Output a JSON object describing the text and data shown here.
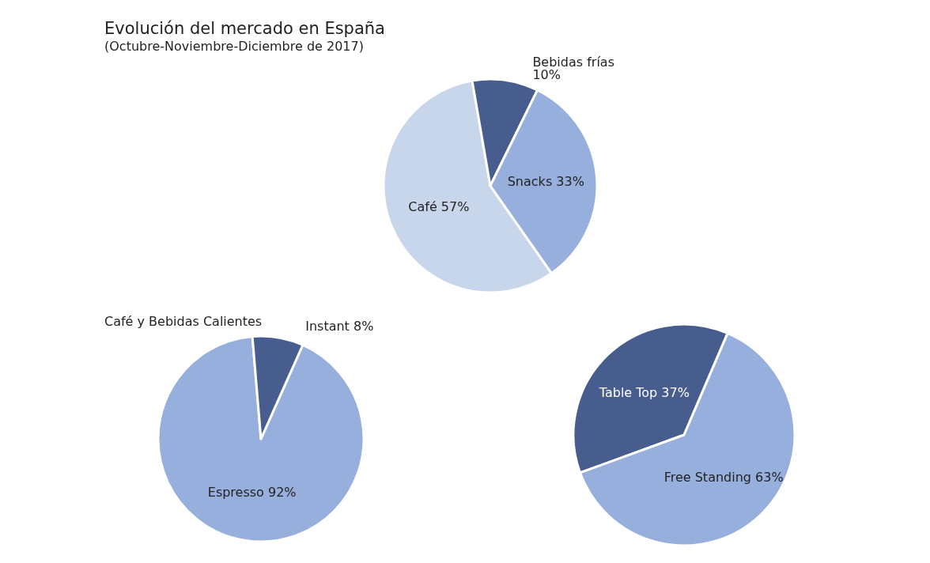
{
  "chart_data": [
    {
      "type": "pie",
      "title": "Evolución del mercado en España",
      "subtitle": "(Octubre-Noviembre-Diciembre de 2017)",
      "categories": [
        "Café",
        "Bebidas frías",
        "Snacks"
      ],
      "values": [
        57,
        10,
        33
      ],
      "colors": [
        "#c8d6ec",
        "#475d8e",
        "#97afdc"
      ],
      "value_labels": [
        "57%",
        "10%",
        "33%"
      ],
      "legend": false
    },
    {
      "type": "pie",
      "title": "Café y Bebidas Calientes",
      "categories": [
        "Espresso",
        "Instant"
      ],
      "values": [
        92,
        8
      ],
      "colors": [
        "#97afdc",
        "#475d8e"
      ],
      "value_labels": [
        "92%",
        "8%"
      ],
      "legend": false
    },
    {
      "type": "pie",
      "categories": [
        "Table Top",
        "Free Standing"
      ],
      "values": [
        37,
        63
      ],
      "colors": [
        "#475d8e",
        "#97afdc"
      ],
      "value_labels": [
        "37%",
        "63%"
      ],
      "legend": false
    }
  ]
}
